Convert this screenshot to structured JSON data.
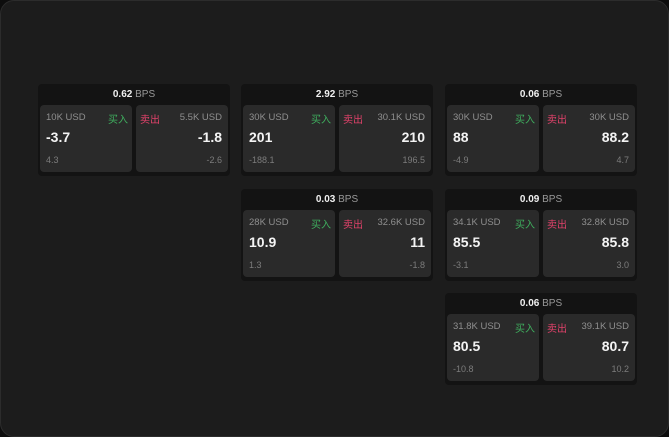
{
  "cards": [
    {
      "bps": "0.62",
      "unit": "BPS",
      "buy": {
        "qty": "10K USD",
        "label": "买入",
        "price": "-3.7",
        "change": "4.3"
      },
      "sell": {
        "qty": "5.5K USD",
        "label": "卖出",
        "price": "-1.8",
        "change": "-2.6"
      }
    },
    {
      "bps": "2.92",
      "unit": "BPS",
      "buy": {
        "qty": "30K USD",
        "label": "买入",
        "price": "201",
        "change": "-188.1"
      },
      "sell": {
        "qty": "30.1K USD",
        "label": "卖出",
        "price": "210",
        "change": "196.5"
      }
    },
    {
      "bps": "0.06",
      "unit": "BPS",
      "buy": {
        "qty": "30K USD",
        "label": "买入",
        "price": "88",
        "change": "-4.9"
      },
      "sell": {
        "qty": "30K USD",
        "label": "卖出",
        "price": "88.2",
        "change": "4.7"
      }
    },
    {
      "bps": "0.03",
      "unit": "BPS",
      "buy": {
        "qty": "28K USD",
        "label": "买入",
        "price": "10.9",
        "change": "1.3"
      },
      "sell": {
        "qty": "32.6K USD",
        "label": "卖出",
        "price": "11",
        "change": "-1.8"
      }
    },
    {
      "bps": "0.09",
      "unit": "BPS",
      "buy": {
        "qty": "34.1K USD",
        "label": "买入",
        "price": "85.5",
        "change": "-3.1"
      },
      "sell": {
        "qty": "32.8K USD",
        "label": "卖出",
        "price": "85.8",
        "change": "3.0"
      }
    },
    {
      "bps": "0.06",
      "unit": "BPS",
      "buy": {
        "qty": "31.8K USD",
        "label": "买入",
        "price": "80.5",
        "change": "-10.8"
      },
      "sell": {
        "qty": "39.1K USD",
        "label": "卖出",
        "price": "80.7",
        "change": "10.2"
      }
    }
  ],
  "colors": {
    "buy": "#3fae5e",
    "sell": "#e0426a",
    "background": "#1c1c1c",
    "tile": "#2a2a2a"
  }
}
